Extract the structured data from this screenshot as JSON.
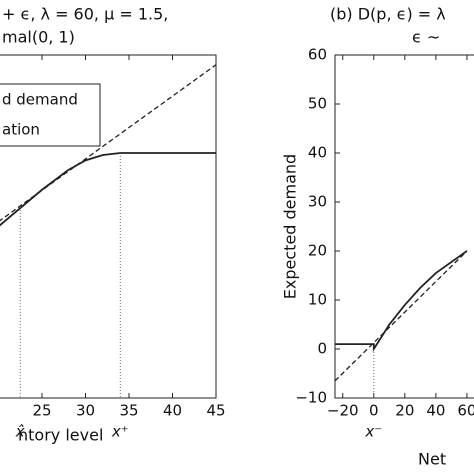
{
  "chart_data": [
    {
      "type": "line",
      "title_lines": [
        "+ ϵ, λ = 60, μ = 1.5,",
        "mal(0, 1)"
      ],
      "x_label": "ntory level",
      "xlim": [
        20,
        45
      ],
      "ylim": [
        0,
        70
      ],
      "xticks": [
        25,
        30,
        35,
        40,
        45
      ],
      "series": [
        {
          "name": "d demand",
          "color": "#222222",
          "linestyle": "solid",
          "x": [
            20,
            25,
            28,
            30,
            32,
            34,
            45
          ],
          "values": [
            35,
            42.5,
            46.5,
            48.5,
            49.6,
            50,
            50
          ]
        },
        {
          "name": "ation",
          "color": "#222222",
          "linestyle": "dashed",
          "x": [
            20,
            45
          ],
          "values": [
            36,
            68
          ]
        }
      ],
      "markers": [
        {
          "label": "x̂",
          "x": 22.5,
          "y": 39
        },
        {
          "label": "x⁺",
          "x": 34,
          "y": 50
        }
      ],
      "legend": true
    },
    {
      "type": "line",
      "title_lines": [
        "(b) D(p, ϵ) = λ",
        "ϵ ~"
      ],
      "x_label": "Net",
      "y_label": "Expected demand",
      "xlim": [
        -25,
        100
      ],
      "ylim": [
        -10,
        60
      ],
      "xticks": [
        {
          "value": -20,
          "label": "−20"
        },
        0,
        20,
        40,
        60
      ],
      "yticks": [
        {
          "value": -10,
          "label": "−10"
        },
        0,
        10,
        20,
        30,
        40,
        50,
        60
      ],
      "series": [
        {
          "color": "#222222",
          "linestyle": "solid",
          "x": [
            -25,
            0,
            0,
            10,
            20,
            30,
            40,
            60
          ],
          "values": [
            1,
            1,
            0,
            5,
            9,
            12.5,
            15.5,
            20
          ]
        },
        {
          "color": "#222222",
          "linestyle": "dashed",
          "x": [
            -25,
            60
          ],
          "values": [
            -6.5,
            20
          ]
        }
      ],
      "markers": [
        {
          "label": "x⁻",
          "x": 0,
          "y": 0
        }
      ],
      "legend": false
    }
  ]
}
